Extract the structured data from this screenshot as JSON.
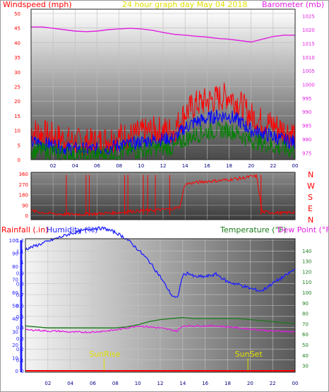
{
  "colors": {
    "windspeed": "#ff0000",
    "wind_avg": "#0000ff",
    "wind_low": "#008000",
    "barometer": "#e020e0",
    "title": "#e0e000",
    "humidity": "#2020ff",
    "temperature": "#1a7a1a",
    "dewpoint": "#e020e0",
    "rainfall": "#ff0000",
    "sun_marker": "#e0e000"
  },
  "chart_data": [
    {
      "type": "line",
      "title": "24 hour graph day   May 04 2018",
      "left_label": "Windspeed (mph)",
      "right_label": "Barometer (mb)",
      "x_ticks": [
        "02",
        "04",
        "06",
        "08",
        "10",
        "12",
        "14",
        "16",
        "18",
        "20",
        "22",
        "00"
      ],
      "x_range": [
        0,
        24
      ],
      "y_left_ticks": [
        "0",
        "5",
        "10",
        "15",
        "20",
        "25",
        "30",
        "35",
        "40",
        "45",
        "50"
      ],
      "y_left_range": [
        0,
        50
      ],
      "y_right_ticks": [
        "975",
        "980",
        "985",
        "990",
        "995",
        "1000",
        "1005",
        "1010",
        "1015",
        "1020",
        "1025"
      ],
      "y_right_range": [
        972.5,
        1027.5
      ],
      "grid": true,
      "series": [
        {
          "name": "Barometer (mb)",
          "axis": "right",
          "x": [
            0,
            1,
            2,
            3,
            4,
            5,
            6,
            7,
            8,
            9,
            10,
            11,
            12,
            13,
            14,
            15,
            16,
            17,
            18,
            19,
            20,
            21,
            22,
            23,
            24
          ],
          "values": [
            1021,
            1021,
            1020.5,
            1020,
            1019.5,
            1019.3,
            1019.5,
            1020,
            1020.3,
            1020.5,
            1020.3,
            1019.8,
            1019,
            1018.3,
            1018,
            1017.6,
            1017.3,
            1016.8,
            1016.5,
            1016,
            1015.5,
            1016.5,
            1017.5,
            1018,
            1018
          ]
        },
        {
          "axis": "left",
          "x": [
            0,
            1,
            2,
            3,
            4,
            5,
            6,
            7,
            8,
            9,
            10,
            11,
            12,
            13,
            14,
            15,
            16,
            17,
            18,
            19,
            20,
            21,
            22,
            23,
            24
          ],
          "values": [
            10,
            9,
            8,
            7,
            6,
            6,
            6,
            7,
            8,
            8,
            9,
            10,
            10,
            10,
            16,
            19,
            20,
            21,
            22,
            19,
            15,
            13,
            12,
            10,
            9
          ]
        },
        {
          "axis": "left",
          "x": [
            0,
            1,
            2,
            3,
            4,
            5,
            6,
            7,
            8,
            9,
            10,
            11,
            12,
            13,
            14,
            15,
            16,
            17,
            18,
            19,
            20,
            21,
            22,
            23,
            24
          ],
          "values": [
            6,
            5.5,
            5,
            4,
            3.5,
            3.5,
            3.5,
            4,
            5,
            5,
            6,
            6.5,
            7,
            7,
            11,
            13,
            14,
            15,
            15,
            13,
            10,
            9,
            8,
            6.5,
            6
          ]
        },
        {
          "axis": "left",
          "x": [
            0,
            1,
            2,
            3,
            4,
            5,
            6,
            7,
            8,
            9,
            10,
            11,
            12,
            13,
            14,
            15,
            16,
            17,
            18,
            19,
            20,
            21,
            22,
            23,
            24
          ],
          "values": [
            3,
            3,
            2.5,
            2,
            1.5,
            1.5,
            1.5,
            2,
            2.5,
            3,
            3,
            3.5,
            4,
            4,
            7,
            8.5,
            9.5,
            10,
            10,
            8.5,
            6.5,
            5.5,
            4.5,
            3.5,
            3
          ]
        }
      ]
    },
    {
      "type": "line",
      "y_right_labels": [
        "N",
        "W",
        "S",
        "E",
        "N"
      ],
      "y_left_ticks": [
        "0",
        "90",
        "180",
        "270",
        "360"
      ],
      "y_range": [
        0,
        360
      ],
      "x_range": [
        0,
        24
      ],
      "grid": true,
      "series": [
        {
          "axis": "left",
          "x": [
            0,
            1,
            2,
            3,
            4,
            5,
            6,
            7,
            8,
            9,
            10,
            11,
            12,
            13,
            13.5,
            14,
            15,
            16,
            17,
            18,
            19,
            20,
            20.5,
            21,
            22,
            23,
            24
          ],
          "values": [
            40,
            25,
            15,
            10,
            10,
            12,
            15,
            20,
            25,
            35,
            40,
            45,
            50,
            60,
            70,
            270,
            285,
            295,
            300,
            310,
            320,
            335,
            340,
            30,
            25,
            20,
            30
          ]
        }
      ]
    },
    {
      "type": "line",
      "left_label_rain": "Rainfall (.in)",
      "left_label_humidity": "Humidity (%)",
      "right_label_temperature": "Temperature (°F)",
      "right_label_dewpoint": "Dew Point (°F)",
      "x_ticks": [
        "02",
        "04",
        "06",
        "08",
        "10",
        "12",
        "14",
        "16",
        "18",
        "20",
        "22",
        "00"
      ],
      "x_range": [
        0,
        24
      ],
      "y_rain_ticks": [
        "0",
        "0.1",
        "0.2",
        "0.3",
        "0.4",
        "0.5",
        "0.6",
        "0.7",
        "0.8",
        "0.9",
        "1",
        "1.1",
        "1.2"
      ],
      "y_rain_range": [
        0,
        1.2
      ],
      "y_humidity_ticks": [
        "0",
        "10",
        "20",
        "30",
        "40",
        "50",
        "60",
        "70",
        "80",
        "90",
        "100"
      ],
      "y_humidity_range": [
        0,
        100
      ],
      "y_temp_ticks": [
        "30",
        "40",
        "50",
        "60",
        "70",
        "80",
        "90",
        "100",
        "110",
        "120",
        "130",
        "140"
      ],
      "y_temp_range": [
        25,
        150
      ],
      "grid": true,
      "annotations": [
        {
          "text": "SunRise",
          "x": 7.0
        },
        {
          "text": "SunSet",
          "x": 19.8
        }
      ],
      "series": [
        {
          "name": "Humidity (%)",
          "axis": "humidity",
          "x": [
            0,
            1,
            2,
            3,
            4,
            5,
            6,
            7,
            8,
            9,
            10,
            11,
            12,
            13,
            13.5,
            14,
            14.5,
            15,
            16,
            17,
            18,
            19,
            20,
            21,
            22,
            23,
            24
          ],
          "values": [
            93,
            96,
            99,
            102,
            105,
            107,
            109,
            109,
            106,
            101,
            93,
            84,
            72,
            58,
            55,
            73,
            75,
            72,
            72,
            74,
            68,
            66,
            63,
            61,
            67,
            72,
            78
          ]
        },
        {
          "name": "Temperature (°F)",
          "axis": "temp",
          "x": [
            0,
            1,
            2,
            3,
            4,
            5,
            6,
            7,
            8,
            9,
            10,
            11,
            12,
            13,
            14,
            15,
            16,
            17,
            18,
            19,
            20,
            21,
            22,
            23,
            24
          ],
          "values": [
            68,
            67,
            66,
            66,
            66,
            66,
            66,
            66,
            66,
            67,
            69,
            72,
            74,
            75,
            76,
            75,
            75,
            75,
            75,
            75,
            74,
            73,
            72,
            71,
            70
          ]
        },
        {
          "name": "Dew Point (°F)",
          "axis": "temp",
          "x": [
            0,
            1,
            2,
            3,
            4,
            5,
            6,
            7,
            8,
            9,
            10,
            11,
            12,
            13,
            13.5,
            14,
            15,
            16,
            17,
            18,
            19,
            20,
            21,
            22,
            23,
            24
          ],
          "values": [
            64,
            64,
            63,
            63,
            62,
            62,
            62,
            63,
            64,
            66,
            68,
            67,
            66,
            64,
            63,
            68,
            68,
            68,
            68,
            67,
            66,
            65,
            64,
            63,
            63,
            62
          ]
        },
        {
          "name": "Rainfall (.in)",
          "axis": "rain",
          "x": [
            0,
            24
          ],
          "values": [
            0,
            0
          ]
        }
      ]
    }
  ]
}
